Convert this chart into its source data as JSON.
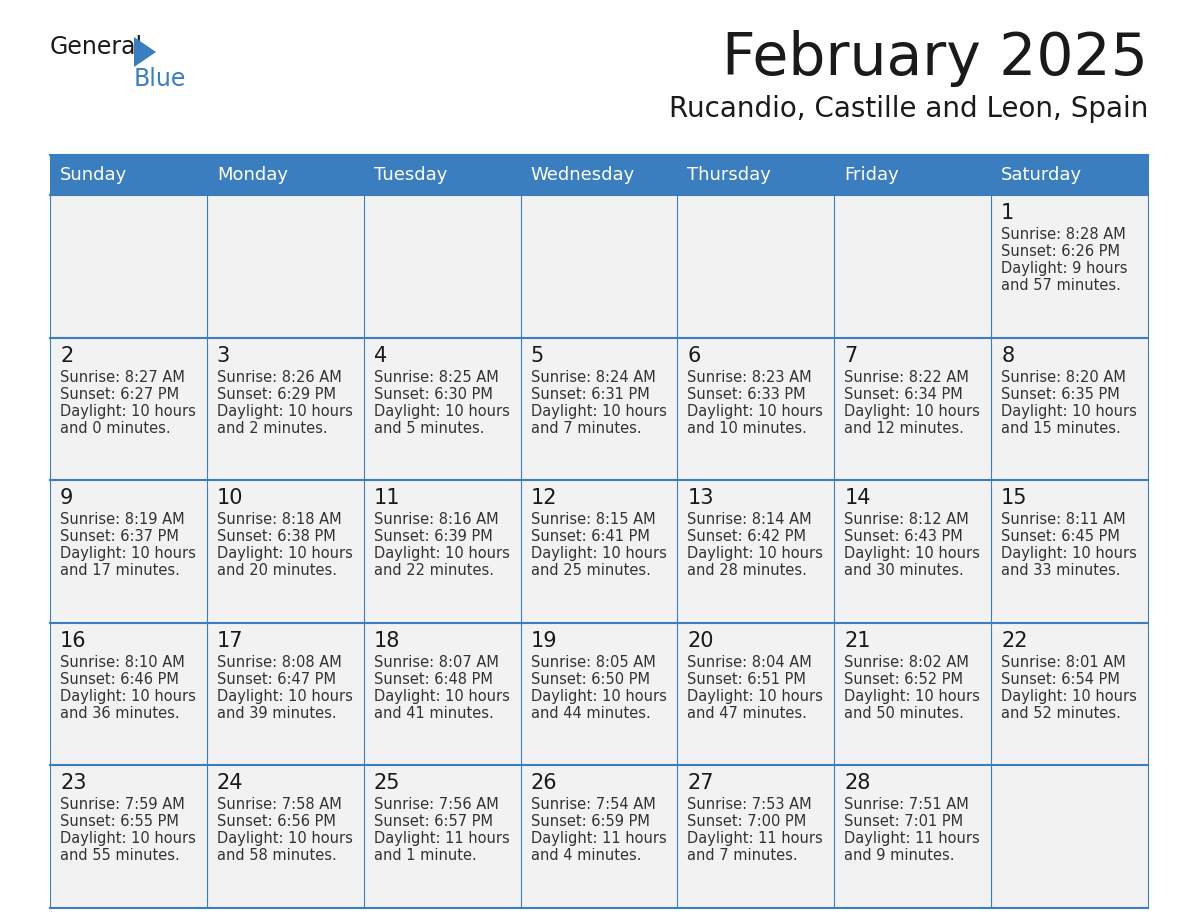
{
  "title": "February 2025",
  "subtitle": "Rucandio, Castille and Leon, Spain",
  "header_bg": "#3a7ebf",
  "header_text_color": "#ffffff",
  "cell_bg": "#ffffff",
  "cell_gray_bg": "#f2f2f2",
  "border_color": "#3a7ebf",
  "day_names": [
    "Sunday",
    "Monday",
    "Tuesday",
    "Wednesday",
    "Thursday",
    "Friday",
    "Saturday"
  ],
  "title_color": "#1a1a1a",
  "subtitle_color": "#1a1a1a",
  "day_number_color": "#1a1a1a",
  "cell_text_color": "#333333",
  "logo_general_color": "#1a1a1a",
  "logo_blue_color": "#3a7ebf",
  "calendar_data": [
    [
      null,
      null,
      null,
      null,
      null,
      null,
      {
        "day": 1,
        "sunrise": "8:28 AM",
        "sunset": "6:26 PM",
        "daylight_line1": "Daylight: 9 hours",
        "daylight_line2": "and 57 minutes."
      }
    ],
    [
      {
        "day": 2,
        "sunrise": "8:27 AM",
        "sunset": "6:27 PM",
        "daylight_line1": "Daylight: 10 hours",
        "daylight_line2": "and 0 minutes."
      },
      {
        "day": 3,
        "sunrise": "8:26 AM",
        "sunset": "6:29 PM",
        "daylight_line1": "Daylight: 10 hours",
        "daylight_line2": "and 2 minutes."
      },
      {
        "day": 4,
        "sunrise": "8:25 AM",
        "sunset": "6:30 PM",
        "daylight_line1": "Daylight: 10 hours",
        "daylight_line2": "and 5 minutes."
      },
      {
        "day": 5,
        "sunrise": "8:24 AM",
        "sunset": "6:31 PM",
        "daylight_line1": "Daylight: 10 hours",
        "daylight_line2": "and 7 minutes."
      },
      {
        "day": 6,
        "sunrise": "8:23 AM",
        "sunset": "6:33 PM",
        "daylight_line1": "Daylight: 10 hours",
        "daylight_line2": "and 10 minutes."
      },
      {
        "day": 7,
        "sunrise": "8:22 AM",
        "sunset": "6:34 PM",
        "daylight_line1": "Daylight: 10 hours",
        "daylight_line2": "and 12 minutes."
      },
      {
        "day": 8,
        "sunrise": "8:20 AM",
        "sunset": "6:35 PM",
        "daylight_line1": "Daylight: 10 hours",
        "daylight_line2": "and 15 minutes."
      }
    ],
    [
      {
        "day": 9,
        "sunrise": "8:19 AM",
        "sunset": "6:37 PM",
        "daylight_line1": "Daylight: 10 hours",
        "daylight_line2": "and 17 minutes."
      },
      {
        "day": 10,
        "sunrise": "8:18 AM",
        "sunset": "6:38 PM",
        "daylight_line1": "Daylight: 10 hours",
        "daylight_line2": "and 20 minutes."
      },
      {
        "day": 11,
        "sunrise": "8:16 AM",
        "sunset": "6:39 PM",
        "daylight_line1": "Daylight: 10 hours",
        "daylight_line2": "and 22 minutes."
      },
      {
        "day": 12,
        "sunrise": "8:15 AM",
        "sunset": "6:41 PM",
        "daylight_line1": "Daylight: 10 hours",
        "daylight_line2": "and 25 minutes."
      },
      {
        "day": 13,
        "sunrise": "8:14 AM",
        "sunset": "6:42 PM",
        "daylight_line1": "Daylight: 10 hours",
        "daylight_line2": "and 28 minutes."
      },
      {
        "day": 14,
        "sunrise": "8:12 AM",
        "sunset": "6:43 PM",
        "daylight_line1": "Daylight: 10 hours",
        "daylight_line2": "and 30 minutes."
      },
      {
        "day": 15,
        "sunrise": "8:11 AM",
        "sunset": "6:45 PM",
        "daylight_line1": "Daylight: 10 hours",
        "daylight_line2": "and 33 minutes."
      }
    ],
    [
      {
        "day": 16,
        "sunrise": "8:10 AM",
        "sunset": "6:46 PM",
        "daylight_line1": "Daylight: 10 hours",
        "daylight_line2": "and 36 minutes."
      },
      {
        "day": 17,
        "sunrise": "8:08 AM",
        "sunset": "6:47 PM",
        "daylight_line1": "Daylight: 10 hours",
        "daylight_line2": "and 39 minutes."
      },
      {
        "day": 18,
        "sunrise": "8:07 AM",
        "sunset": "6:48 PM",
        "daylight_line1": "Daylight: 10 hours",
        "daylight_line2": "and 41 minutes."
      },
      {
        "day": 19,
        "sunrise": "8:05 AM",
        "sunset": "6:50 PM",
        "daylight_line1": "Daylight: 10 hours",
        "daylight_line2": "and 44 minutes."
      },
      {
        "day": 20,
        "sunrise": "8:04 AM",
        "sunset": "6:51 PM",
        "daylight_line1": "Daylight: 10 hours",
        "daylight_line2": "and 47 minutes."
      },
      {
        "day": 21,
        "sunrise": "8:02 AM",
        "sunset": "6:52 PM",
        "daylight_line1": "Daylight: 10 hours",
        "daylight_line2": "and 50 minutes."
      },
      {
        "day": 22,
        "sunrise": "8:01 AM",
        "sunset": "6:54 PM",
        "daylight_line1": "Daylight: 10 hours",
        "daylight_line2": "and 52 minutes."
      }
    ],
    [
      {
        "day": 23,
        "sunrise": "7:59 AM",
        "sunset": "6:55 PM",
        "daylight_line1": "Daylight: 10 hours",
        "daylight_line2": "and 55 minutes."
      },
      {
        "day": 24,
        "sunrise": "7:58 AM",
        "sunset": "6:56 PM",
        "daylight_line1": "Daylight: 10 hours",
        "daylight_line2": "and 58 minutes."
      },
      {
        "day": 25,
        "sunrise": "7:56 AM",
        "sunset": "6:57 PM",
        "daylight_line1": "Daylight: 11 hours",
        "daylight_line2": "and 1 minute."
      },
      {
        "day": 26,
        "sunrise": "7:54 AM",
        "sunset": "6:59 PM",
        "daylight_line1": "Daylight: 11 hours",
        "daylight_line2": "and 4 minutes."
      },
      {
        "day": 27,
        "sunrise": "7:53 AM",
        "sunset": "7:00 PM",
        "daylight_line1": "Daylight: 11 hours",
        "daylight_line2": "and 7 minutes."
      },
      {
        "day": 28,
        "sunrise": "7:51 AM",
        "sunset": "7:01 PM",
        "daylight_line1": "Daylight: 11 hours",
        "daylight_line2": "and 9 minutes."
      },
      null
    ]
  ]
}
